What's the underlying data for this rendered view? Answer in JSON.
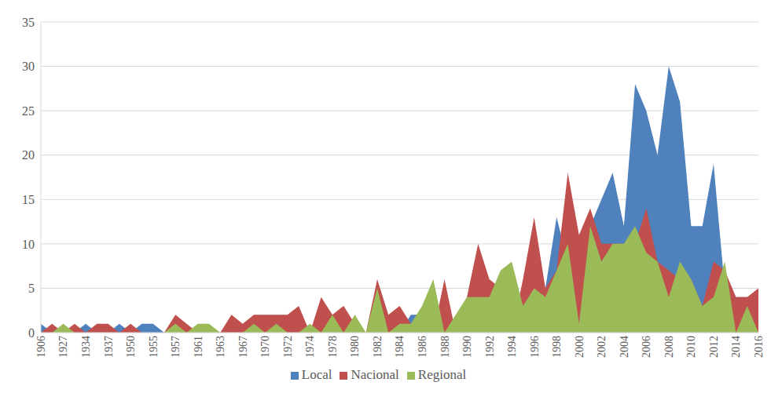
{
  "chart_data": {
    "type": "area",
    "stacked": false,
    "grid": true,
    "legend": "bottom",
    "categories": [
      "1906",
      null,
      "1927",
      null,
      "1934",
      null,
      "1937",
      null,
      "1950",
      null,
      "1955",
      null,
      "1957",
      null,
      "1961",
      null,
      "1963",
      null,
      "1967",
      null,
      "1970",
      null,
      "1972",
      null,
      "1974",
      null,
      "1978",
      null,
      "1980",
      null,
      "1982",
      null,
      "1984",
      null,
      "1986",
      null,
      "1988",
      null,
      "1990",
      null,
      "1992",
      null,
      "1994",
      null,
      "1996",
      null,
      "1998",
      null,
      "2000",
      null,
      "2002",
      null,
      "2004",
      null,
      "2006",
      null,
      "2008",
      null,
      "2010",
      null,
      "2012",
      null,
      "2014",
      null,
      "2016"
    ],
    "series": [
      {
        "name": "Local",
        "color": "#4f81bd",
        "values": [
          1,
          0,
          0,
          0,
          1,
          0,
          0,
          1,
          0,
          1,
          1,
          0,
          0,
          0,
          0,
          0,
          0,
          0,
          0,
          0,
          0,
          0,
          0,
          0,
          0,
          0,
          0,
          0,
          0,
          0,
          3,
          0,
          0,
          2,
          2,
          0,
          0,
          0,
          0,
          0,
          0,
          0,
          0,
          5,
          0,
          5,
          13,
          8,
          10,
          12,
          15,
          18,
          12,
          28,
          25,
          20,
          30,
          26,
          12,
          12,
          19,
          5,
          4,
          4,
          0
        ]
      },
      {
        "name": "Nacional",
        "color": "#c0504d",
        "values": [
          0,
          1,
          0,
          1,
          0,
          1,
          1,
          0,
          1,
          0,
          0,
          0,
          2,
          1,
          0,
          0,
          0,
          2,
          1,
          2,
          2,
          2,
          2,
          3,
          0,
          4,
          2,
          3,
          1,
          0,
          6,
          2,
          3,
          1,
          0,
          0,
          6,
          0,
          4,
          10,
          6,
          5,
          0,
          6,
          13,
          5,
          7,
          18,
          11,
          14,
          10,
          10,
          10,
          10,
          14,
          8,
          7,
          6,
          6,
          3,
          8,
          7,
          4,
          4,
          5
        ]
      },
      {
        "name": "Regional",
        "color": "#9bbb59",
        "values": [
          0,
          0,
          1,
          0,
          0,
          0,
          0,
          0,
          0,
          0,
          0,
          0,
          1,
          0,
          1,
          1,
          0,
          0,
          0,
          1,
          0,
          1,
          0,
          0,
          1,
          0,
          2,
          0,
          2,
          0,
          5,
          0,
          1,
          1,
          3,
          6,
          0,
          2,
          4,
          4,
          4,
          7,
          8,
          3,
          5,
          4,
          7,
          10,
          1,
          12,
          8,
          10,
          10,
          12,
          9,
          8,
          4,
          8,
          6,
          3,
          4,
          8,
          0,
          3,
          0
        ]
      }
    ],
    "ylim": [
      0,
      35
    ],
    "yticks": [
      0,
      5,
      10,
      15,
      20,
      25,
      30,
      35
    ]
  }
}
